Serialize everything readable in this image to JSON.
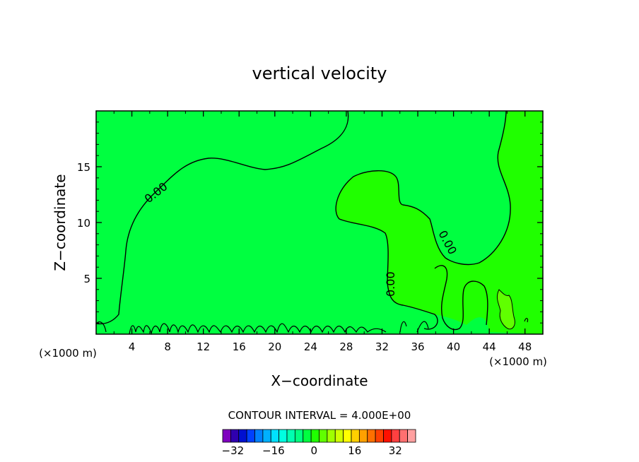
{
  "chart_data": {
    "type": "contour",
    "title": "vertical velocity",
    "xlabel": "X−coordinate",
    "ylabel": "Z−coordinate",
    "x_unit_left": "(×1000 m)",
    "x_unit_right": "(×1000 m)",
    "xlim": [
      0,
      50
    ],
    "ylim": [
      0,
      20
    ],
    "x_ticks": [
      4,
      8,
      12,
      16,
      20,
      24,
      28,
      32,
      36,
      40,
      44,
      48
    ],
    "y_ticks": [
      5,
      10,
      15
    ],
    "contour_labels": [
      "0.00",
      "0.00",
      "0.00"
    ],
    "contour_interval_text": "CONTOUR INTERVAL = 4.000E+00",
    "colorbar": {
      "tick_labels": [
        "−32",
        "−16",
        "0",
        "16",
        "32"
      ],
      "tick_values": [
        -32,
        -16,
        0,
        16,
        32
      ],
      "colors": [
        "#7f00bf",
        "#2f00af",
        "#0010d0",
        "#0040ff",
        "#0080ff",
        "#00b0ff",
        "#00e0ff",
        "#00ffe0",
        "#00ffb0",
        "#00ff80",
        "#00ff40",
        "#20ff00",
        "#60ff00",
        "#a0ff00",
        "#d0ff00",
        "#ffff00",
        "#ffd000",
        "#ffa000",
        "#ff7000",
        "#ff4000",
        "#ff1000",
        "#ff4040",
        "#ff7070",
        "#ffa0a0"
      ]
    },
    "regions": {
      "main": "#00ff40",
      "positive": "#20ff00",
      "strong_positive": "#60ff00"
    }
  }
}
